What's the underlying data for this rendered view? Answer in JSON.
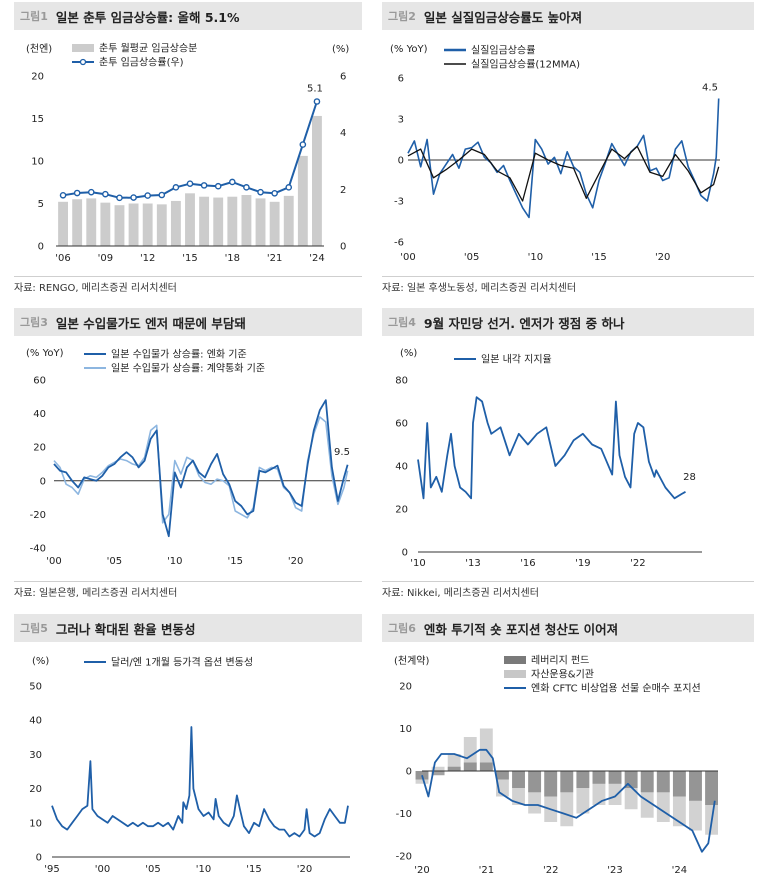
{
  "colors": {
    "blue": "#1f5fa8",
    "lightblue": "#8db6e0",
    "gray": "#cccccc",
    "black": "#111111",
    "darkgray": "#7a7a7a",
    "lightgray": "#c7c7c7"
  },
  "panels": [
    {
      "num": "그림1",
      "title": "일본 춘투 임금상승률: 올해 5.1%",
      "source": "자료: RENGO, 메리츠증권 리서치센터"
    },
    {
      "num": "그림2",
      "title": "일본 실질임금상승률도 높아져",
      "source": "자료: 일본 후생노동성, 메리츠증권 리서치센터"
    },
    {
      "num": "그림3",
      "title": "일본 수입물가도 엔저 때문에 부담돼",
      "source": "자료: 일본은행, 메리츠증권 리서치센터"
    },
    {
      "num": "그림4",
      "title": "9월 자민당 선거. 엔저가 쟁점 중 하나",
      "source": "자료: Nikkei, 메리츠증권 리서치센터"
    },
    {
      "num": "그림5",
      "title": "그러나 확대된 환율 변동성",
      "source": ""
    },
    {
      "num": "그림6",
      "title": "엔화 투기적 숏 포지션 청산도 이어져",
      "source": ""
    }
  ],
  "chart_data": [
    {
      "type": "bar+line",
      "ylabel_left": "(천엔)",
      "ylabel_right": "(%)",
      "ylim_left": [
        0,
        20
      ],
      "ylim_right": [
        0,
        6
      ],
      "yticks_left": [
        "0",
        "5",
        "10",
        "15",
        "20"
      ],
      "yticks_right": [
        "0",
        "2",
        "4",
        "6"
      ],
      "xticks": [
        "'06",
        "'09",
        "'12",
        "'15",
        "'18",
        "'21",
        "'24"
      ],
      "x": [
        2006,
        2007,
        2008,
        2009,
        2010,
        2011,
        2012,
        2013,
        2014,
        2015,
        2016,
        2017,
        2018,
        2019,
        2020,
        2021,
        2022,
        2023,
        2024
      ],
      "series": [
        {
          "name": "춘투 월평균 임금상승분",
          "kind": "bar",
          "axis": "left",
          "values": [
            5.2,
            5.5,
            5.6,
            5.1,
            4.8,
            5.0,
            5.0,
            4.9,
            5.3,
            6.2,
            5.8,
            5.7,
            5.8,
            6.0,
            5.6,
            5.2,
            5.9,
            10.6,
            15.3
          ]
        },
        {
          "name": "춘투 임금상승률(우)",
          "kind": "line",
          "axis": "right",
          "values": [
            1.79,
            1.87,
            1.9,
            1.83,
            1.7,
            1.71,
            1.78,
            1.8,
            2.07,
            2.2,
            2.14,
            2.11,
            2.26,
            2.07,
            1.9,
            1.86,
            2.07,
            3.58,
            5.1
          ]
        }
      ],
      "annotation": "5.1"
    },
    {
      "type": "line",
      "ylabel": "(% YoY)",
      "ylim": [
        -6,
        6
      ],
      "yticks": [
        "-6",
        "-3",
        "0",
        "3",
        "6"
      ],
      "xlim": [
        2000,
        2024.5
      ],
      "xticks": [
        "'00",
        "'05",
        "'10",
        "'15",
        "'20"
      ],
      "series": [
        {
          "name": "실질임금상승률",
          "kind": "line",
          "x": [
            2000,
            2000.5,
            2001,
            2001.5,
            2002,
            2002.5,
            2003,
            2003.5,
            2004,
            2004.5,
            2005,
            2005.5,
            2006,
            2006.5,
            2007,
            2007.5,
            2008,
            2008.5,
            2009,
            2009.5,
            2010,
            2010.5,
            2011,
            2011.5,
            2012,
            2012.5,
            2013,
            2013.5,
            2014,
            2014.5,
            2015,
            2015.5,
            2016,
            2016.5,
            2017,
            2017.5,
            2018,
            2018.5,
            2019,
            2019.5,
            2020,
            2020.5,
            2021,
            2021.5,
            2022,
            2022.5,
            2023,
            2023.5,
            2024,
            2024.2,
            2024.4
          ],
          "values": [
            0.5,
            1.4,
            -0.5,
            1.5,
            -2.5,
            -1.0,
            -0.3,
            0.4,
            -0.6,
            0.8,
            0.9,
            1.3,
            0.2,
            -0.2,
            -0.9,
            -0.4,
            -1.5,
            -2.5,
            -3.5,
            -4.2,
            1.5,
            0.8,
            -0.3,
            0.2,
            -1.0,
            0.6,
            -0.5,
            -0.9,
            -2.5,
            -3.5,
            -1.5,
            -0.2,
            1.2,
            0.4,
            -0.4,
            0.6,
            1.0,
            1.8,
            -0.8,
            -0.6,
            -1.5,
            -1.3,
            0.8,
            1.4,
            -0.5,
            -1.5,
            -2.6,
            -3.0,
            -1.0,
            0.2,
            4.5
          ]
        },
        {
          "name": "실질임금상승률(12MMA)",
          "kind": "line",
          "x": [
            2000,
            2001,
            2002,
            2003,
            2004,
            2005,
            2006,
            2007,
            2008,
            2009,
            2010,
            2011,
            2012,
            2013,
            2014,
            2015,
            2016,
            2017,
            2018,
            2019,
            2020,
            2021,
            2022,
            2023,
            2024,
            2024.4
          ],
          "values": [
            0.3,
            0.8,
            -1.3,
            -0.7,
            0.0,
            0.8,
            0.4,
            -0.8,
            -1.3,
            -3.0,
            0.5,
            0.0,
            -0.4,
            -0.6,
            -2.8,
            -1.0,
            0.8,
            0.1,
            1.0,
            -0.9,
            -1.2,
            0.4,
            -0.8,
            -2.4,
            -1.8,
            -0.5
          ]
        }
      ],
      "annotation": "4.5"
    },
    {
      "type": "line",
      "ylabel": "(% YoY)",
      "ylim": [
        -40,
        60
      ],
      "yticks": [
        "-40",
        "-20",
        "0",
        "20",
        "40",
        "60"
      ],
      "xlim": [
        2000,
        2024.5
      ],
      "xticks": [
        "'00",
        "'05",
        "'10",
        "'15",
        "'20"
      ],
      "series": [
        {
          "name": "일본 수입물가 상승률: 엔화 기준",
          "kind": "line",
          "x": [
            2000,
            2000.5,
            2001,
            2001.5,
            2002,
            2002.5,
            2003,
            2003.5,
            2004,
            2004.5,
            2005,
            2005.5,
            2006,
            2006.5,
            2007,
            2007.5,
            2008,
            2008.5,
            2009,
            2009.5,
            2010,
            2010.5,
            2011,
            2011.5,
            2012,
            2012.5,
            2013,
            2013.5,
            2014,
            2014.5,
            2015,
            2015.5,
            2016,
            2016.5,
            2017,
            2017.5,
            2018,
            2018.5,
            2019,
            2019.5,
            2020,
            2020.5,
            2021,
            2021.5,
            2022,
            2022.5,
            2023,
            2023.5,
            2024,
            2024.3
          ],
          "values": [
            10,
            6,
            5,
            0,
            -4,
            2,
            1,
            0,
            3,
            8,
            10,
            14,
            17,
            14,
            8,
            12,
            25,
            30,
            -20,
            -33,
            5,
            -4,
            8,
            12,
            5,
            2,
            10,
            16,
            4,
            -2,
            -12,
            -15,
            -20,
            -18,
            6,
            5,
            7,
            9,
            -3,
            -7,
            -13,
            -15,
            10,
            30,
            42,
            48,
            8,
            -12,
            2,
            9.5
          ]
        },
        {
          "name": "일본 수입물가 상승률: 계약통화 기준",
          "kind": "line",
          "x": [
            2000,
            2000.5,
            2001,
            2001.5,
            2002,
            2002.5,
            2003,
            2003.5,
            2004,
            2004.5,
            2005,
            2005.5,
            2006,
            2006.5,
            2007,
            2007.5,
            2008,
            2008.5,
            2009,
            2009.5,
            2010,
            2010.5,
            2011,
            2011.5,
            2012,
            2012.5,
            2013,
            2013.5,
            2014,
            2014.5,
            2015,
            2015.5,
            2016,
            2016.5,
            2017,
            2017.5,
            2018,
            2018.5,
            2019,
            2019.5,
            2020,
            2020.5,
            2021,
            2021.5,
            2022,
            2022.5,
            2023,
            2023.5,
            2024,
            2024.3
          ],
          "values": [
            12,
            8,
            -2,
            -4,
            -8,
            1,
            3,
            2,
            5,
            9,
            11,
            13,
            12,
            10,
            9,
            14,
            30,
            33,
            -25,
            -20,
            12,
            4,
            14,
            12,
            3,
            -1,
            -2,
            1,
            0,
            -3,
            -18,
            -20,
            -22,
            -16,
            8,
            6,
            8,
            7,
            -4,
            -7,
            -16,
            -18,
            12,
            28,
            38,
            35,
            3,
            -14,
            -4,
            6
          ]
        }
      ],
      "annotation": "9.5"
    },
    {
      "type": "line",
      "ylabel": "(%)",
      "ylim": [
        0,
        80
      ],
      "yticks": [
        "0",
        "20",
        "40",
        "60",
        "80"
      ],
      "xlim": [
        2010,
        2025.5
      ],
      "xticks": [
        "'10",
        "'13",
        "'16",
        "'19",
        "'22"
      ],
      "series": [
        {
          "name": "일본 내각 지지율",
          "kind": "line",
          "x": [
            2010,
            2010.3,
            2010.5,
            2010.7,
            2011,
            2011.3,
            2011.6,
            2011.8,
            2012,
            2012.3,
            2012.6,
            2012.9,
            2013,
            2013.2,
            2013.5,
            2013.8,
            2014,
            2014.5,
            2015,
            2015.5,
            2016,
            2016.5,
            2017,
            2017.5,
            2018,
            2018.5,
            2019,
            2019.5,
            2020,
            2020.3,
            2020.6,
            2020.8,
            2021,
            2021.3,
            2021.6,
            2021.8,
            2022,
            2022.3,
            2022.6,
            2022.9,
            2023,
            2023.5,
            2024,
            2024.4,
            2024.6
          ],
          "values": [
            43,
            25,
            60,
            30,
            35,
            28,
            45,
            55,
            40,
            30,
            28,
            25,
            60,
            72,
            70,
            60,
            55,
            58,
            45,
            55,
            50,
            55,
            58,
            40,
            45,
            52,
            55,
            50,
            48,
            42,
            36,
            70,
            45,
            35,
            30,
            55,
            60,
            58,
            42,
            35,
            38,
            30,
            25,
            27,
            28
          ]
        }
      ],
      "annotation": "28"
    },
    {
      "type": "line",
      "ylabel": "(%)",
      "ylim": [
        0,
        50
      ],
      "yticks": [
        "0",
        "10",
        "20",
        "30",
        "40",
        "50"
      ],
      "xlim": [
        1995,
        2024.5
      ],
      "xticks": [
        "'95",
        "'00",
        "'05",
        "'10",
        "'15",
        "'20"
      ],
      "series": [
        {
          "name": "달러/엔 1개월 등가격 옵션 변동성",
          "kind": "line",
          "x": [
            1995,
            1995.5,
            1996,
            1996.5,
            1997,
            1997.5,
            1998,
            1998.5,
            1998.8,
            1999,
            1999.5,
            2000,
            2000.5,
            2001,
            2001.5,
            2002,
            2002.5,
            2003,
            2003.5,
            2004,
            2004.5,
            2005,
            2005.5,
            2006,
            2006.5,
            2007,
            2007.5,
            2007.9,
            2008,
            2008.3,
            2008.6,
            2008.8,
            2009,
            2009.5,
            2010,
            2010.5,
            2011,
            2011.2,
            2011.5,
            2012,
            2012.5,
            2013,
            2013.3,
            2013.6,
            2014,
            2014.5,
            2015,
            2015.5,
            2016,
            2016.5,
            2017,
            2017.5,
            2018,
            2018.5,
            2019,
            2019.5,
            2020,
            2020.2,
            2020.5,
            2021,
            2021.5,
            2022,
            2022.5,
            2023,
            2023.5,
            2024,
            2024.3
          ],
          "values": [
            15,
            11,
            9,
            8,
            10,
            12,
            14,
            15,
            28,
            14,
            12,
            11,
            10,
            12,
            11,
            10,
            9,
            10,
            9,
            10,
            9,
            9,
            10,
            9,
            10,
            8,
            12,
            10,
            16,
            14,
            18,
            38,
            20,
            14,
            12,
            13,
            11,
            17,
            12,
            10,
            9,
            12,
            18,
            14,
            9,
            7,
            10,
            9,
            14,
            11,
            9,
            8,
            8,
            6,
            7,
            6,
            8,
            14,
            7,
            6,
            7,
            11,
            14,
            12,
            10,
            10,
            15
          ]
        }
      ]
    },
    {
      "type": "bar+line",
      "ylabel": "(천계약)",
      "ylim": [
        -20,
        20
      ],
      "yticks": [
        "-20",
        "-10",
        "0",
        "10",
        "20"
      ],
      "xlim": [
        2020,
        2024.6
      ],
      "xticks": [
        "'20",
        "'21",
        "'22",
        "'23",
        "'24"
      ],
      "series": [
        {
          "name": "레버리지 펀드",
          "kind": "bar",
          "x": [
            2020,
            2020.25,
            2020.5,
            2020.75,
            2021,
            2021.25,
            2021.5,
            2021.75,
            2022,
            2022.25,
            2022.5,
            2022.75,
            2023,
            2023.25,
            2023.5,
            2023.75,
            2024,
            2024.25,
            2024.5
          ],
          "values": [
            -2,
            -1,
            1,
            2,
            2,
            -2,
            -4,
            -5,
            -6,
            -5,
            -4,
            -3,
            -3,
            -4,
            -5,
            -5,
            -6,
            -7,
            -8
          ]
        },
        {
          "name": "자산운용&기관",
          "kind": "bar",
          "x": [
            2020,
            2020.25,
            2020.5,
            2020.75,
            2021,
            2021.25,
            2021.5,
            2021.75,
            2022,
            2022.25,
            2022.5,
            2022.75,
            2023,
            2023.25,
            2023.5,
            2023.75,
            2024,
            2024.25,
            2024.5
          ],
          "values": [
            -3,
            1,
            4,
            8,
            10,
            -6,
            -8,
            -10,
            -12,
            -13,
            -10,
            -8,
            -8,
            -9,
            -11,
            -12,
            -13,
            -14,
            -15
          ]
        },
        {
          "name": "엔화 CFTC 비상업용 선물 순매수 포지션",
          "kind": "line",
          "x": [
            2020,
            2020.1,
            2020.2,
            2020.3,
            2020.5,
            2020.7,
            2020.9,
            2021,
            2021.1,
            2021.2,
            2021.4,
            2021.6,
            2021.8,
            2022,
            2022.2,
            2022.4,
            2022.6,
            2022.8,
            2023,
            2023.2,
            2023.4,
            2023.6,
            2023.8,
            2024,
            2024.2,
            2024.35,
            2024.45,
            2024.55
          ],
          "values": [
            -1,
            -6,
            2,
            4,
            4,
            3,
            5,
            5,
            3,
            -5,
            -7,
            -8,
            -8,
            -9,
            -10,
            -11,
            -9,
            -7,
            -6,
            -3,
            -6,
            -8,
            -10,
            -12,
            -14,
            -19,
            -17,
            -7
          ]
        }
      ]
    }
  ]
}
